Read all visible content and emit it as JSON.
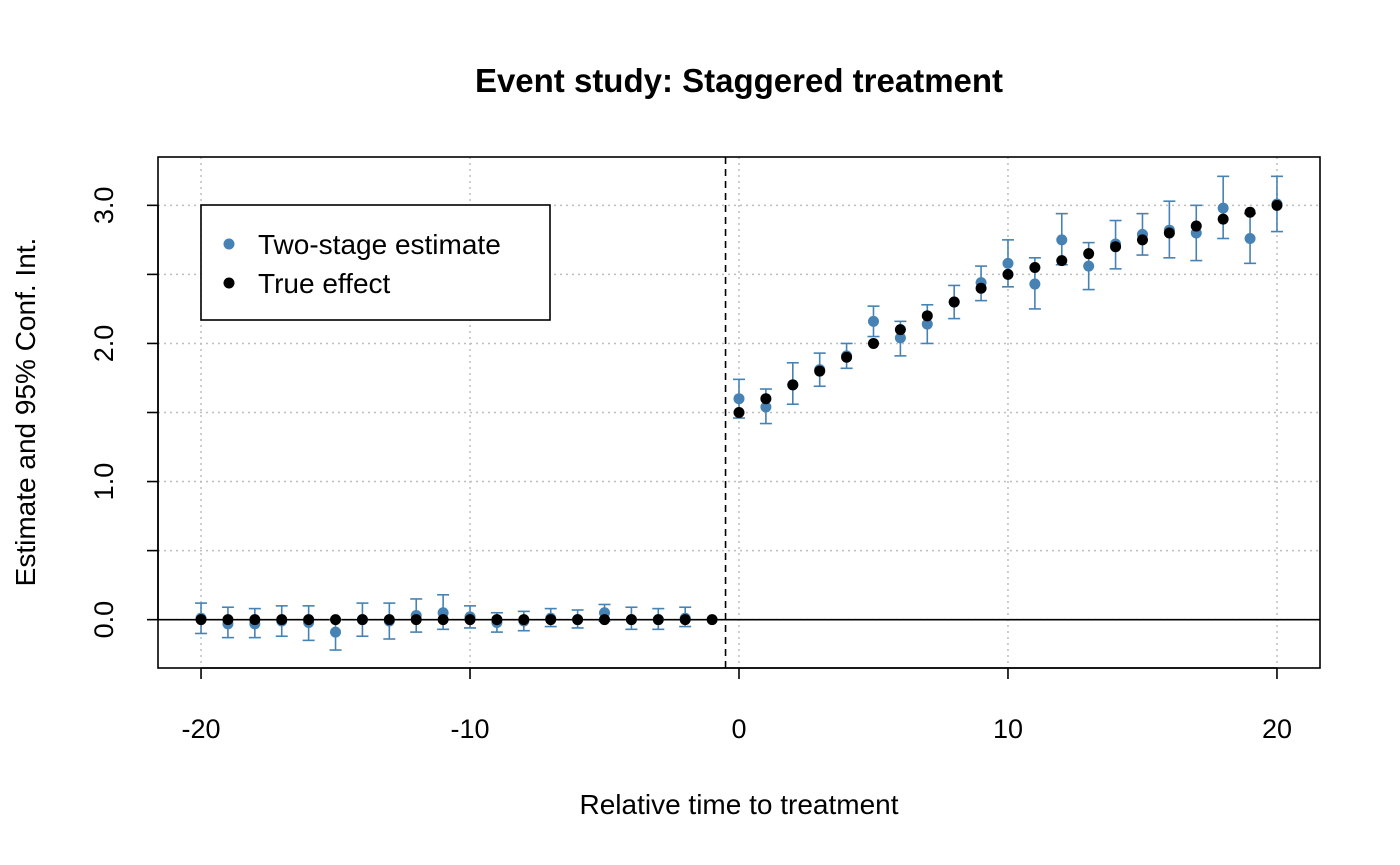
{
  "chart_data": {
    "type": "scatter",
    "title": "Event study: Staggered treatment",
    "xlabel": "Relative time to treatment",
    "ylabel": "Estimate and 95% Conf. Int.",
    "xlim": [
      -21.6,
      21.6
    ],
    "ylim": [
      -0.35,
      3.35
    ],
    "x_ticks": [
      -20,
      -10,
      0,
      10,
      20
    ],
    "x_tick_labels": [
      "-20",
      "-10",
      "0",
      "10",
      "20"
    ],
    "y_ticks": [
      0.0,
      0.5,
      1.0,
      1.5,
      2.0,
      2.5,
      3.0
    ],
    "y_tick_labels": [
      "0.0",
      "",
      "1.0",
      "",
      "2.0",
      "",
      "3.0"
    ],
    "grid": true,
    "reference_lines": {
      "horizontal_y": 0,
      "vertical_dashed_x": -0.5
    },
    "legend": {
      "position": "top-left",
      "entries": [
        {
          "label": "Two-stage estimate",
          "color": "#4682B4"
        },
        {
          "label": "True effect",
          "color": "#000000"
        }
      ]
    },
    "series": [
      {
        "name": "Two-stage estimate",
        "color": "#4682B4",
        "points": [
          {
            "x": -20,
            "y": 0.01,
            "lo": -0.1,
            "hi": 0.12
          },
          {
            "x": -19,
            "y": -0.03,
            "lo": -0.13,
            "hi": 0.09
          },
          {
            "x": -18,
            "y": -0.03,
            "lo": -0.13,
            "hi": 0.08
          },
          {
            "x": -17,
            "y": -0.01,
            "lo": -0.12,
            "hi": 0.1
          },
          {
            "x": -16,
            "y": -0.02,
            "lo": -0.15,
            "hi": 0.1
          },
          {
            "x": -15,
            "y": -0.09,
            "lo": -0.22,
            "hi": 0.0
          },
          {
            "x": -14,
            "y": 0.0,
            "lo": -0.12,
            "hi": 0.12
          },
          {
            "x": -13,
            "y": -0.01,
            "lo": -0.14,
            "hi": 0.12
          },
          {
            "x": -12,
            "y": 0.03,
            "lo": -0.09,
            "hi": 0.15
          },
          {
            "x": -11,
            "y": 0.05,
            "lo": -0.07,
            "hi": 0.18
          },
          {
            "x": -10,
            "y": 0.02,
            "lo": -0.06,
            "hi": 0.1
          },
          {
            "x": -9,
            "y": -0.02,
            "lo": -0.09,
            "hi": 0.05
          },
          {
            "x": -8,
            "y": -0.01,
            "lo": -0.08,
            "hi": 0.06
          },
          {
            "x": -7,
            "y": 0.01,
            "lo": -0.05,
            "hi": 0.08
          },
          {
            "x": -6,
            "y": 0.0,
            "lo": -0.06,
            "hi": 0.07
          },
          {
            "x": -5,
            "y": 0.05,
            "lo": -0.01,
            "hi": 0.11
          },
          {
            "x": -4,
            "y": 0.0,
            "lo": -0.07,
            "hi": 0.09
          },
          {
            "x": -3,
            "y": 0.0,
            "lo": -0.07,
            "hi": 0.08
          },
          {
            "x": -2,
            "y": 0.01,
            "lo": -0.05,
            "hi": 0.09
          },
          {
            "x": 0,
            "y": 1.6,
            "lo": 1.46,
            "hi": 1.74
          },
          {
            "x": 1,
            "y": 1.54,
            "lo": 1.42,
            "hi": 1.67
          },
          {
            "x": 2,
            "y": 1.7,
            "lo": 1.56,
            "hi": 1.86
          },
          {
            "x": 3,
            "y": 1.81,
            "lo": 1.69,
            "hi": 1.93
          },
          {
            "x": 4,
            "y": 1.91,
            "lo": 1.82,
            "hi": 2.0
          },
          {
            "x": 5,
            "y": 2.16,
            "lo": 2.05,
            "hi": 2.27
          },
          {
            "x": 6,
            "y": 2.04,
            "lo": 1.91,
            "hi": 2.16
          },
          {
            "x": 7,
            "y": 2.14,
            "lo": 2.0,
            "hi": 2.28
          },
          {
            "x": 8,
            "y": 2.3,
            "lo": 2.18,
            "hi": 2.42
          },
          {
            "x": 9,
            "y": 2.44,
            "lo": 2.31,
            "hi": 2.56
          },
          {
            "x": 10,
            "y": 2.58,
            "lo": 2.41,
            "hi": 2.75
          },
          {
            "x": 11,
            "y": 2.43,
            "lo": 2.25,
            "hi": 2.62
          },
          {
            "x": 12,
            "y": 2.75,
            "lo": 2.57,
            "hi": 2.94
          },
          {
            "x": 13,
            "y": 2.56,
            "lo": 2.39,
            "hi": 2.73
          },
          {
            "x": 14,
            "y": 2.72,
            "lo": 2.54,
            "hi": 2.89
          },
          {
            "x": 15,
            "y": 2.79,
            "lo": 2.64,
            "hi": 2.94
          },
          {
            "x": 16,
            "y": 2.82,
            "lo": 2.62,
            "hi": 3.03
          },
          {
            "x": 17,
            "y": 2.8,
            "lo": 2.6,
            "hi": 3.0
          },
          {
            "x": 18,
            "y": 2.98,
            "lo": 2.76,
            "hi": 3.21
          },
          {
            "x": 19,
            "y": 2.76,
            "lo": 2.58,
            "hi": 2.94
          },
          {
            "x": 20,
            "y": 3.01,
            "lo": 2.81,
            "hi": 3.21
          }
        ]
      },
      {
        "name": "True effect",
        "color": "#000000",
        "points": [
          {
            "x": -20,
            "y": 0
          },
          {
            "x": -19,
            "y": 0
          },
          {
            "x": -18,
            "y": 0
          },
          {
            "x": -17,
            "y": 0
          },
          {
            "x": -16,
            "y": 0
          },
          {
            "x": -15,
            "y": 0
          },
          {
            "x": -14,
            "y": 0
          },
          {
            "x": -13,
            "y": 0
          },
          {
            "x": -12,
            "y": 0
          },
          {
            "x": -11,
            "y": 0
          },
          {
            "x": -10,
            "y": 0
          },
          {
            "x": -9,
            "y": 0
          },
          {
            "x": -8,
            "y": 0
          },
          {
            "x": -7,
            "y": 0
          },
          {
            "x": -6,
            "y": 0
          },
          {
            "x": -5,
            "y": 0
          },
          {
            "x": -4,
            "y": 0
          },
          {
            "x": -3,
            "y": 0
          },
          {
            "x": -2,
            "y": 0
          },
          {
            "x": -1,
            "y": 0
          },
          {
            "x": 0,
            "y": 1.5
          },
          {
            "x": 1,
            "y": 1.6
          },
          {
            "x": 2,
            "y": 1.7
          },
          {
            "x": 3,
            "y": 1.8
          },
          {
            "x": 4,
            "y": 1.9
          },
          {
            "x": 5,
            "y": 2.0
          },
          {
            "x": 6,
            "y": 2.1
          },
          {
            "x": 7,
            "y": 2.2
          },
          {
            "x": 8,
            "y": 2.3
          },
          {
            "x": 9,
            "y": 2.4
          },
          {
            "x": 10,
            "y": 2.5
          },
          {
            "x": 11,
            "y": 2.55
          },
          {
            "x": 12,
            "y": 2.6
          },
          {
            "x": 13,
            "y": 2.65
          },
          {
            "x": 14,
            "y": 2.7
          },
          {
            "x": 15,
            "y": 2.75
          },
          {
            "x": 16,
            "y": 2.8
          },
          {
            "x": 17,
            "y": 2.85
          },
          {
            "x": 18,
            "y": 2.9
          },
          {
            "x": 19,
            "y": 2.95
          },
          {
            "x": 20,
            "y": 3.0
          }
        ]
      }
    ]
  }
}
